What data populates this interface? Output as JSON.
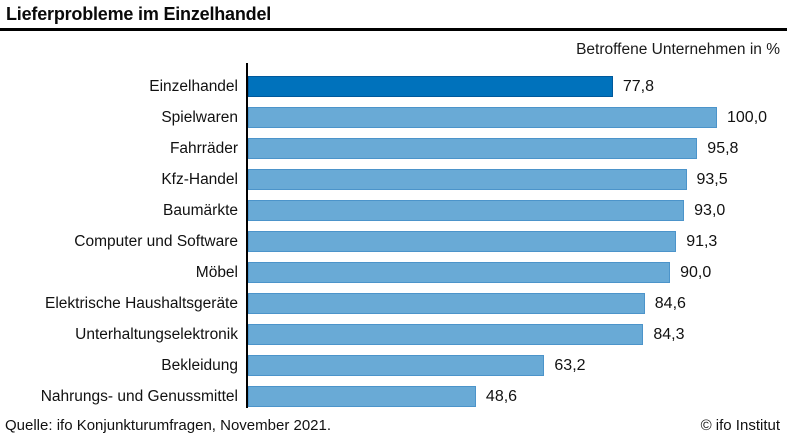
{
  "title": "Lieferprobleme im Einzelhandel",
  "subtitle": "Betroffene Unternehmen in %",
  "footer": {
    "source": "Quelle: ifo Konjunkturumfragen, November 2021.",
    "copyright": "© ifo Institut"
  },
  "colors": {
    "highlight_bar": "#0072BC",
    "highlight_bar_border": "#00599C",
    "regular_bar": "#69AAD6",
    "regular_bar_border": "#4C94CA",
    "axis": "#000000",
    "title_rule": "#000000"
  },
  "chart_data": {
    "type": "bar",
    "orientation": "horizontal",
    "title": "Lieferprobleme im Einzelhandel",
    "subtitle": "Betroffene Unternehmen in %",
    "xlabel": "",
    "ylabel": "",
    "xlim": [
      0,
      100
    ],
    "grid": false,
    "legend": false,
    "highlight_index": 0,
    "categories": [
      "Einzelhandel",
      "Spielwaren",
      "Fahrräder",
      "Kfz-Handel",
      "Baumärkte",
      "Computer und Software",
      "Möbel",
      "Elektrische Haushaltsgeräte",
      "Unterhaltungselektronik",
      "Bekleidung",
      "Nahrungs- und Genussmittel"
    ],
    "values": [
      77.8,
      100.0,
      95.8,
      93.5,
      93.0,
      91.3,
      90.0,
      84.6,
      84.3,
      63.2,
      48.6
    ],
    "value_labels": [
      "77,8",
      "100,0",
      "95,8",
      "93,5",
      "93,0",
      "91,3",
      "90,0",
      "84,6",
      "84,3",
      "63,2",
      "48,6"
    ]
  }
}
